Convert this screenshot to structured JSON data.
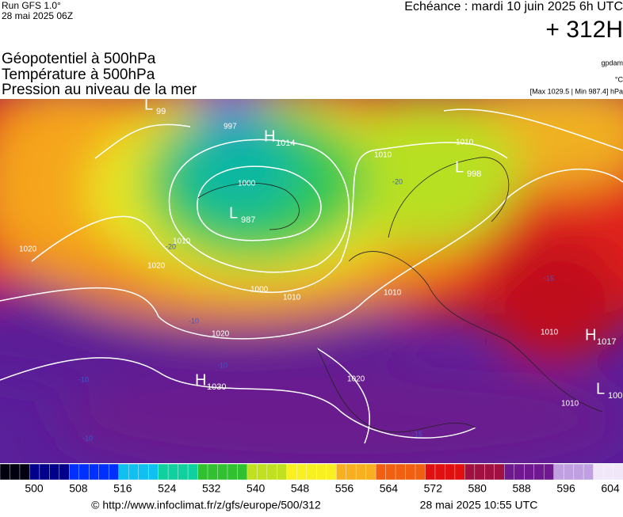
{
  "header": {
    "run": "Run GFS 1.0°",
    "run_date": "28 mai 2025 06Z",
    "echeance": "Echéance : mardi 10 juin 2025 6h UTC",
    "offset": "+ 312H"
  },
  "legend": {
    "lines": [
      "Géopotentiel à 500hPa",
      "Température à 500hPa",
      "Pression au niveau de la mer"
    ],
    "units": [
      "gpdam",
      "°C",
      "[Max 1029.5 | Min 987.4] hPa"
    ]
  },
  "centers": [
    {
      "letter": "L",
      "value": "99"
    },
    {
      "letter": "H",
      "value": "1014"
    },
    {
      "letter": "L",
      "value": "987"
    },
    {
      "letter": "L",
      "value": "998"
    },
    {
      "letter": "H",
      "value": "1030"
    },
    {
      "letter": "H",
      "value": "1017"
    },
    {
      "letter": "L",
      "value": "100"
    }
  ],
  "isobar_labels": [
    "997",
    "1000",
    "1010",
    "1010",
    "1020",
    "1000",
    "1010",
    "1020",
    "1020",
    "1010",
    "1010",
    "1020",
    "1010",
    "1010"
  ],
  "temp_labels": [
    "-20",
    "-20",
    "-15",
    "-10",
    "-10",
    "-10",
    "-10",
    "-15"
  ],
  "colorbar": {
    "labels": [
      500,
      508,
      516,
      524,
      532,
      540,
      548,
      556,
      564,
      572,
      580,
      588,
      596,
      604
    ]
  },
  "footer": {
    "url": "© http://www.infoclimat.fr/z/gfs/europe/500/312",
    "date": "28 mai 2025 10:55 UTC"
  }
}
